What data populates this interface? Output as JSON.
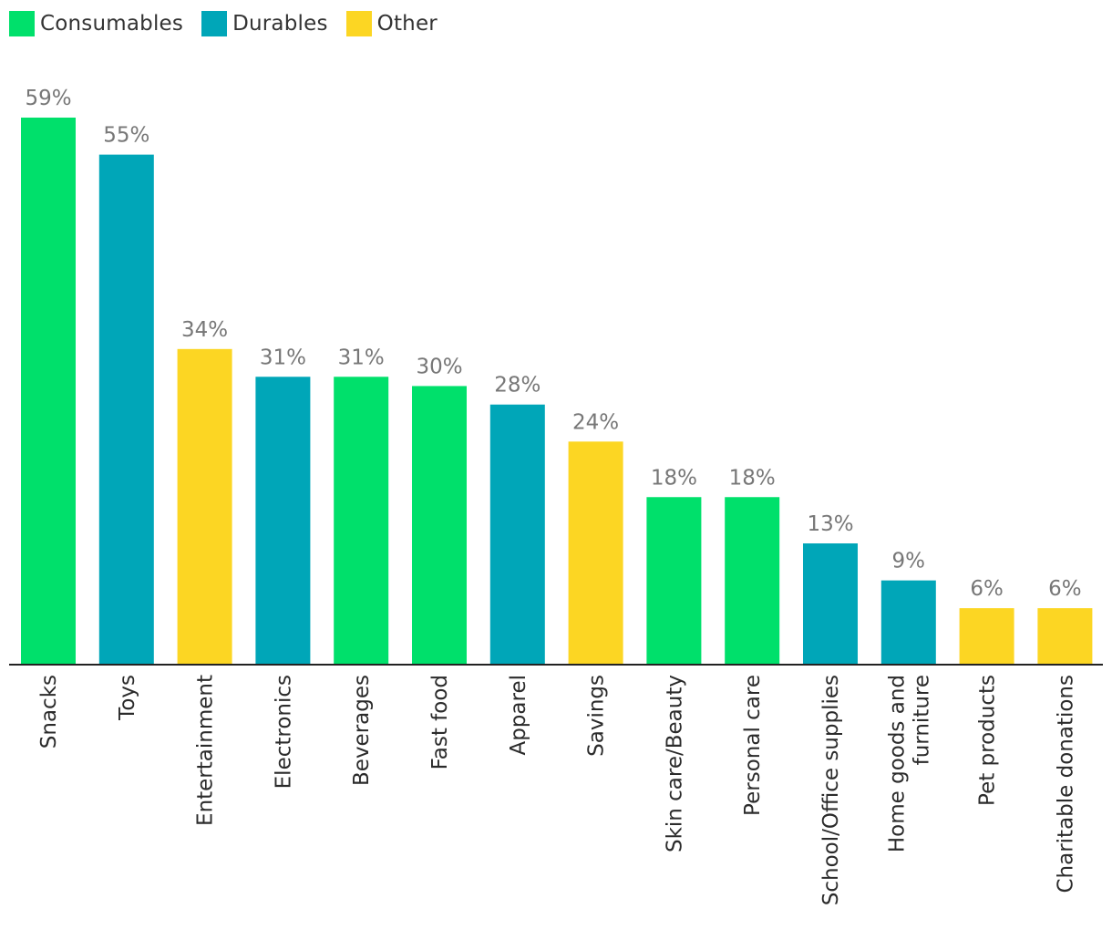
{
  "legend": [
    {
      "name": "Consumables",
      "color": "#00E06B"
    },
    {
      "name": "Durables",
      "color": "#00A6B8"
    },
    {
      "name": "Other",
      "color": "#FCD623"
    }
  ],
  "chart_data": {
    "type": "bar",
    "title": "",
    "xlabel": "",
    "ylabel": "",
    "ylim": [
      0,
      59
    ],
    "grid": false,
    "legend_position": "top-left",
    "categories": [
      "Snacks",
      "Toys",
      "Entertainment",
      "Electronics",
      "Beverages",
      "Fast food",
      "Apparel",
      "Savings",
      "Skin care/Beauty",
      "Personal care",
      "School/Office supplies",
      "Home goods and furniture",
      "Pet products",
      "Charitable donations"
    ],
    "category_lines": [
      [
        "Snacks"
      ],
      [
        "Toys"
      ],
      [
        "Entertainment"
      ],
      [
        "Electronics"
      ],
      [
        "Beverages"
      ],
      [
        "Fast food"
      ],
      [
        "Apparel"
      ],
      [
        "Savings"
      ],
      [
        "Skin care/Beauty"
      ],
      [
        "Personal care"
      ],
      [
        "School/Office supplies"
      ],
      [
        "Home goods and",
        "furniture"
      ],
      [
        "Pet products"
      ],
      [
        "Charitable donations"
      ]
    ],
    "values": [
      59,
      55,
      34,
      31,
      31,
      30,
      28,
      24,
      18,
      18,
      13,
      9,
      6,
      6
    ],
    "value_labels": [
      "59%",
      "55%",
      "34%",
      "31%",
      "31%",
      "30%",
      "28%",
      "24%",
      "18%",
      "18%",
      "13%",
      "9%",
      "6%",
      "6%"
    ],
    "groups": [
      "Consumables",
      "Durables",
      "Other",
      "Durables",
      "Consumables",
      "Consumables",
      "Durables",
      "Other",
      "Consumables",
      "Consumables",
      "Durables",
      "Durables",
      "Other",
      "Other"
    ]
  }
}
